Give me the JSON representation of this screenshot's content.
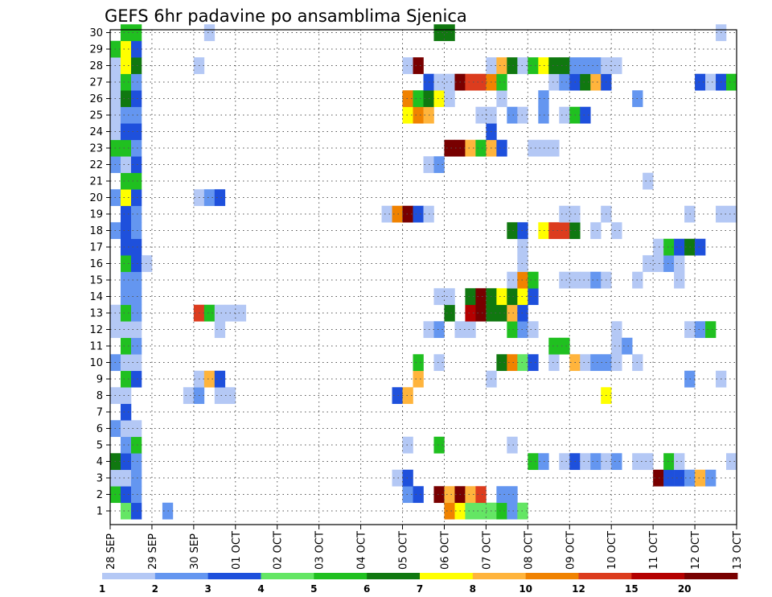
{
  "chart_data": {
    "type": "heatmap",
    "title": "GEFS 6hr padavine po ansamblima Sjenica",
    "ylabel": "",
    "xlabel": "",
    "y_members": [
      "1",
      "2",
      "3",
      "4",
      "5",
      "6",
      "7",
      "8",
      "9",
      "10",
      "11",
      "12",
      "13",
      "14",
      "15",
      "16",
      "17",
      "18",
      "19",
      "20",
      "21",
      "22",
      "23",
      "24",
      "25",
      "26",
      "27",
      "28",
      "29",
      "30"
    ],
    "x_ticks": [
      "28 SEP",
      "29 SEP",
      "30 SEP",
      "01 OCT",
      "02 OCT",
      "03 OCT",
      "04 OCT",
      "05 OCT",
      "06 OCT",
      "07 OCT",
      "08 OCT",
      "09 OCT",
      "10 OCT",
      "11 OCT",
      "12 OCT",
      "13 OCT"
    ],
    "x_range_6h_steps": [
      0,
      60
    ],
    "grid": true,
    "colorbar": {
      "labels": [
        "1",
        "2",
        "3",
        "4",
        "5",
        "6",
        "7",
        "8",
        "10",
        "12",
        "15",
        "20"
      ],
      "colors": [
        "#b4c8f5",
        "#6496f0",
        "#1e50dc",
        "#64e664",
        "#20c020",
        "#107810",
        "#ffff00",
        "#ffb43c",
        "#f08200",
        "#dc3c1e",
        "#b40000",
        "#780000"
      ]
    },
    "cells": [
      {
        "m": 1,
        "s": [
          [
            1,
            4
          ],
          [
            2,
            3
          ],
          [
            5,
            2
          ],
          [
            32,
            9
          ],
          [
            33,
            7
          ],
          [
            34,
            4
          ],
          [
            35,
            4
          ],
          [
            36,
            4
          ],
          [
            37,
            5
          ],
          [
            38,
            2
          ],
          [
            39,
            4
          ]
        ]
      },
      {
        "m": 2,
        "s": [
          [
            0,
            5
          ],
          [
            1,
            3
          ],
          [
            2,
            2
          ],
          [
            28,
            2
          ],
          [
            29,
            3
          ],
          [
            31,
            12
          ],
          [
            32,
            8
          ],
          [
            33,
            12
          ],
          [
            34,
            8
          ],
          [
            35,
            10
          ],
          [
            37,
            2
          ],
          [
            38,
            2
          ]
        ]
      },
      {
        "m": 3,
        "s": [
          [
            0,
            1
          ],
          [
            1,
            1
          ],
          [
            2,
            2
          ],
          [
            27,
            1
          ],
          [
            28,
            3
          ],
          [
            52,
            12
          ],
          [
            53,
            3
          ],
          [
            54,
            3
          ],
          [
            55,
            2
          ],
          [
            56,
            8
          ],
          [
            57,
            2
          ]
        ]
      },
      {
        "m": 4,
        "s": [
          [
            0,
            6
          ],
          [
            1,
            3
          ],
          [
            2,
            2
          ],
          [
            40,
            5
          ],
          [
            41,
            2
          ],
          [
            43,
            1
          ],
          [
            44,
            3
          ],
          [
            45,
            1
          ],
          [
            46,
            2
          ],
          [
            47,
            1
          ],
          [
            48,
            2
          ],
          [
            50,
            1
          ],
          [
            51,
            1
          ],
          [
            53,
            5
          ],
          [
            54,
            1
          ],
          [
            59,
            1
          ]
        ]
      },
      {
        "m": 5,
        "s": [
          [
            1,
            2
          ],
          [
            2,
            5
          ],
          [
            28,
            1
          ],
          [
            31,
            5
          ],
          [
            38,
            1
          ]
        ]
      },
      {
        "m": 6,
        "s": [
          [
            0,
            2
          ],
          [
            1,
            1
          ],
          [
            2,
            1
          ]
        ]
      },
      {
        "m": 7,
        "s": [
          [
            1,
            3
          ]
        ]
      },
      {
        "m": 8,
        "s": [
          [
            0,
            1
          ],
          [
            1,
            1
          ],
          [
            7,
            1
          ],
          [
            8,
            2
          ],
          [
            10,
            1
          ],
          [
            11,
            1
          ],
          [
            27,
            3
          ],
          [
            28,
            8
          ],
          [
            47,
            7
          ]
        ]
      },
      {
        "m": 9,
        "s": [
          [
            1,
            5
          ],
          [
            2,
            3
          ],
          [
            8,
            1
          ],
          [
            9,
            8
          ],
          [
            10,
            3
          ],
          [
            29,
            8
          ],
          [
            36,
            1
          ],
          [
            55,
            2
          ],
          [
            58,
            1
          ]
        ]
      },
      {
        "m": 10,
        "s": [
          [
            0,
            2
          ],
          [
            1,
            1
          ],
          [
            2,
            1
          ],
          [
            29,
            5
          ],
          [
            31,
            1
          ],
          [
            37,
            6
          ],
          [
            38,
            9
          ],
          [
            39,
            4
          ],
          [
            40,
            3
          ],
          [
            42,
            1
          ],
          [
            44,
            8
          ],
          [
            45,
            1
          ],
          [
            46,
            2
          ],
          [
            47,
            2
          ],
          [
            48,
            1
          ],
          [
            50,
            1
          ]
        ]
      },
      {
        "m": 11,
        "s": [
          [
            1,
            5
          ],
          [
            2,
            2
          ],
          [
            42,
            5
          ],
          [
            43,
            5
          ],
          [
            48,
            1
          ],
          [
            49,
            2
          ]
        ]
      },
      {
        "m": 12,
        "s": [
          [
            0,
            1
          ],
          [
            1,
            1
          ],
          [
            2,
            1
          ],
          [
            10,
            1
          ],
          [
            30,
            1
          ],
          [
            31,
            2
          ],
          [
            33,
            1
          ],
          [
            34,
            1
          ],
          [
            38,
            5
          ],
          [
            39,
            2
          ],
          [
            40,
            1
          ],
          [
            48,
            1
          ],
          [
            55,
            1
          ],
          [
            56,
            2
          ],
          [
            57,
            5
          ]
        ]
      },
      {
        "m": 13,
        "s": [
          [
            0,
            1
          ],
          [
            1,
            5
          ],
          [
            2,
            2
          ],
          [
            8,
            10
          ],
          [
            9,
            5
          ],
          [
            10,
            1
          ],
          [
            11,
            1
          ],
          [
            12,
            1
          ],
          [
            32,
            6
          ],
          [
            34,
            11
          ],
          [
            35,
            12
          ],
          [
            36,
            6
          ],
          [
            37,
            6
          ],
          [
            38,
            8
          ],
          [
            39,
            3
          ]
        ]
      },
      {
        "m": 14,
        "s": [
          [
            1,
            2
          ],
          [
            2,
            2
          ],
          [
            31,
            1
          ],
          [
            32,
            1
          ],
          [
            34,
            6
          ],
          [
            35,
            12
          ],
          [
            36,
            6
          ],
          [
            37,
            7
          ],
          [
            38,
            6
          ],
          [
            39,
            7
          ],
          [
            40,
            3
          ]
        ]
      },
      {
        "m": 15,
        "s": [
          [
            1,
            2
          ],
          [
            2,
            2
          ],
          [
            38,
            1
          ],
          [
            39,
            9
          ],
          [
            40,
            5
          ],
          [
            43,
            1
          ],
          [
            44,
            1
          ],
          [
            45,
            1
          ],
          [
            46,
            2
          ],
          [
            47,
            1
          ],
          [
            50,
            1
          ],
          [
            54,
            1
          ]
        ]
      },
      {
        "m": 16,
        "s": [
          [
            1,
            5
          ],
          [
            2,
            3
          ],
          [
            3,
            1
          ],
          [
            39,
            1
          ],
          [
            51,
            1
          ],
          [
            52,
            1
          ],
          [
            53,
            2
          ],
          [
            54,
            1
          ]
        ]
      },
      {
        "m": 17,
        "s": [
          [
            1,
            3
          ],
          [
            2,
            3
          ],
          [
            39,
            1
          ],
          [
            52,
            1
          ],
          [
            53,
            5
          ],
          [
            54,
            3
          ],
          [
            55,
            6
          ],
          [
            56,
            3
          ]
        ]
      },
      {
        "m": 18,
        "s": [
          [
            0,
            2
          ],
          [
            1,
            3
          ],
          [
            2,
            2
          ],
          [
            38,
            6
          ],
          [
            39,
            3
          ],
          [
            41,
            7
          ],
          [
            42,
            10
          ],
          [
            43,
            10
          ],
          [
            44,
            6
          ],
          [
            46,
            1
          ],
          [
            48,
            1
          ]
        ]
      },
      {
        "m": 19,
        "s": [
          [
            1,
            3
          ],
          [
            2,
            2
          ],
          [
            26,
            1
          ],
          [
            27,
            9
          ],
          [
            28,
            12
          ],
          [
            29,
            3
          ],
          [
            30,
            1
          ],
          [
            43,
            1
          ],
          [
            44,
            1
          ],
          [
            47,
            1
          ],
          [
            55,
            1
          ],
          [
            58,
            1
          ],
          [
            59,
            1
          ]
        ]
      },
      {
        "m": 20,
        "s": [
          [
            0,
            2
          ],
          [
            1,
            7
          ],
          [
            2,
            3
          ],
          [
            8,
            1
          ],
          [
            9,
            2
          ],
          [
            10,
            3
          ]
        ]
      },
      {
        "m": 21,
        "s": [
          [
            1,
            5
          ],
          [
            2,
            5
          ],
          [
            51,
            1
          ]
        ]
      },
      {
        "m": 22,
        "s": [
          [
            0,
            2
          ],
          [
            1,
            1
          ],
          [
            2,
            3
          ],
          [
            30,
            1
          ],
          [
            31,
            2
          ]
        ]
      },
      {
        "m": 23,
        "s": [
          [
            0,
            5
          ],
          [
            1,
            5
          ],
          [
            2,
            2
          ],
          [
            32,
            12
          ],
          [
            33,
            12
          ],
          [
            34,
            8
          ],
          [
            35,
            5
          ],
          [
            36,
            8
          ],
          [
            37,
            3
          ],
          [
            40,
            1
          ],
          [
            41,
            1
          ],
          [
            42,
            1
          ]
        ]
      },
      {
        "m": 24,
        "s": [
          [
            0,
            1
          ],
          [
            1,
            3
          ],
          [
            2,
            3
          ],
          [
            36,
            3
          ]
        ]
      },
      {
        "m": 25,
        "s": [
          [
            0,
            1
          ],
          [
            1,
            2
          ],
          [
            2,
            2
          ],
          [
            28,
            7
          ],
          [
            29,
            9
          ],
          [
            30,
            8
          ],
          [
            35,
            1
          ],
          [
            36,
            1
          ],
          [
            38,
            2
          ],
          [
            39,
            1
          ],
          [
            41,
            2
          ],
          [
            43,
            1
          ],
          [
            44,
            5
          ],
          [
            45,
            3
          ]
        ]
      },
      {
        "m": 26,
        "s": [
          [
            0,
            1
          ],
          [
            1,
            6
          ],
          [
            2,
            3
          ],
          [
            28,
            9
          ],
          [
            29,
            5
          ],
          [
            30,
            6
          ],
          [
            31,
            7
          ],
          [
            32,
            1
          ],
          [
            37,
            1
          ],
          [
            41,
            2
          ],
          [
            50,
            2
          ]
        ]
      },
      {
        "m": 27,
        "s": [
          [
            0,
            1
          ],
          [
            1,
            5
          ],
          [
            2,
            2
          ],
          [
            30,
            3
          ],
          [
            31,
            1
          ],
          [
            32,
            1
          ],
          [
            33,
            12
          ],
          [
            34,
            10
          ],
          [
            35,
            10
          ],
          [
            36,
            9
          ],
          [
            37,
            5
          ],
          [
            42,
            1
          ],
          [
            43,
            2
          ],
          [
            44,
            3
          ],
          [
            45,
            6
          ],
          [
            46,
            8
          ],
          [
            47,
            3
          ],
          [
            56,
            3
          ],
          [
            57,
            1
          ],
          [
            58,
            3
          ],
          [
            59,
            5
          ]
        ]
      },
      {
        "m": 28,
        "s": [
          [
            0,
            1
          ],
          [
            1,
            7
          ],
          [
            2,
            6
          ],
          [
            8,
            1
          ],
          [
            28,
            1
          ],
          [
            29,
            12
          ],
          [
            36,
            1
          ],
          [
            37,
            8
          ],
          [
            38,
            6
          ],
          [
            39,
            1
          ],
          [
            40,
            5
          ],
          [
            41,
            7
          ],
          [
            42,
            6
          ],
          [
            43,
            6
          ],
          [
            44,
            2
          ],
          [
            45,
            2
          ],
          [
            46,
            2
          ],
          [
            47,
            1
          ],
          [
            48,
            1
          ]
        ]
      },
      {
        "m": 29,
        "s": [
          [
            0,
            5
          ],
          [
            1,
            7
          ],
          [
            2,
            3
          ]
        ]
      },
      {
        "m": 30,
        "s": [
          [
            1,
            5
          ],
          [
            2,
            5
          ],
          [
            9,
            1
          ],
          [
            31,
            6
          ],
          [
            32,
            6
          ],
          [
            58,
            1
          ]
        ]
      }
    ]
  }
}
